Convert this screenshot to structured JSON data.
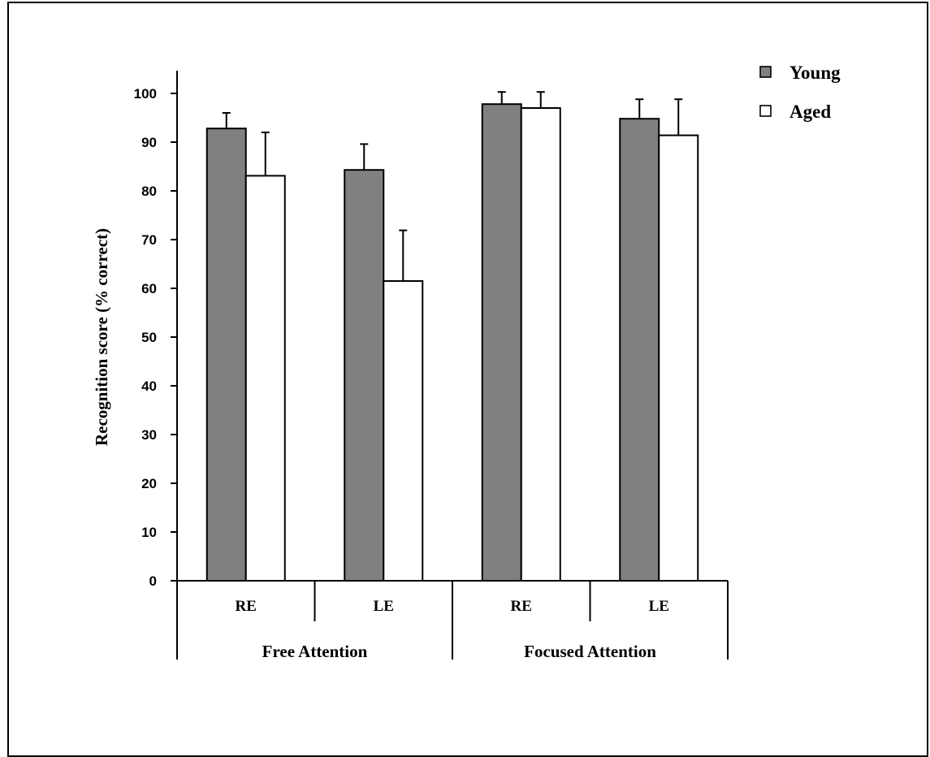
{
  "chart_data": {
    "type": "bar",
    "title": "",
    "ylabel": "Recognition score (% correct)",
    "xlabel": "",
    "ylim": [
      0,
      100
    ],
    "yticks": [
      0,
      10,
      20,
      30,
      40,
      50,
      60,
      70,
      80,
      90,
      100
    ],
    "categories": [
      "RE",
      "LE",
      "RE",
      "LE"
    ],
    "groups": [
      {
        "label": "Free Attention",
        "span": [
          0,
          1
        ]
      },
      {
        "label": "Focused Attention",
        "span": [
          2,
          3
        ]
      }
    ],
    "series": [
      {
        "name": "Young",
        "color": "#808080",
        "values": [
          92.8,
          84.3,
          97.8,
          94.8
        ],
        "errors": [
          3.2,
          5.3,
          2.5,
          4.0
        ]
      },
      {
        "name": "Aged",
        "color": "#ffffff",
        "values": [
          83.1,
          61.5,
          97.0,
          91.4
        ],
        "errors": [
          8.9,
          10.4,
          3.3,
          7.4
        ]
      }
    ],
    "legend_position": "top-right",
    "grid": false
  }
}
